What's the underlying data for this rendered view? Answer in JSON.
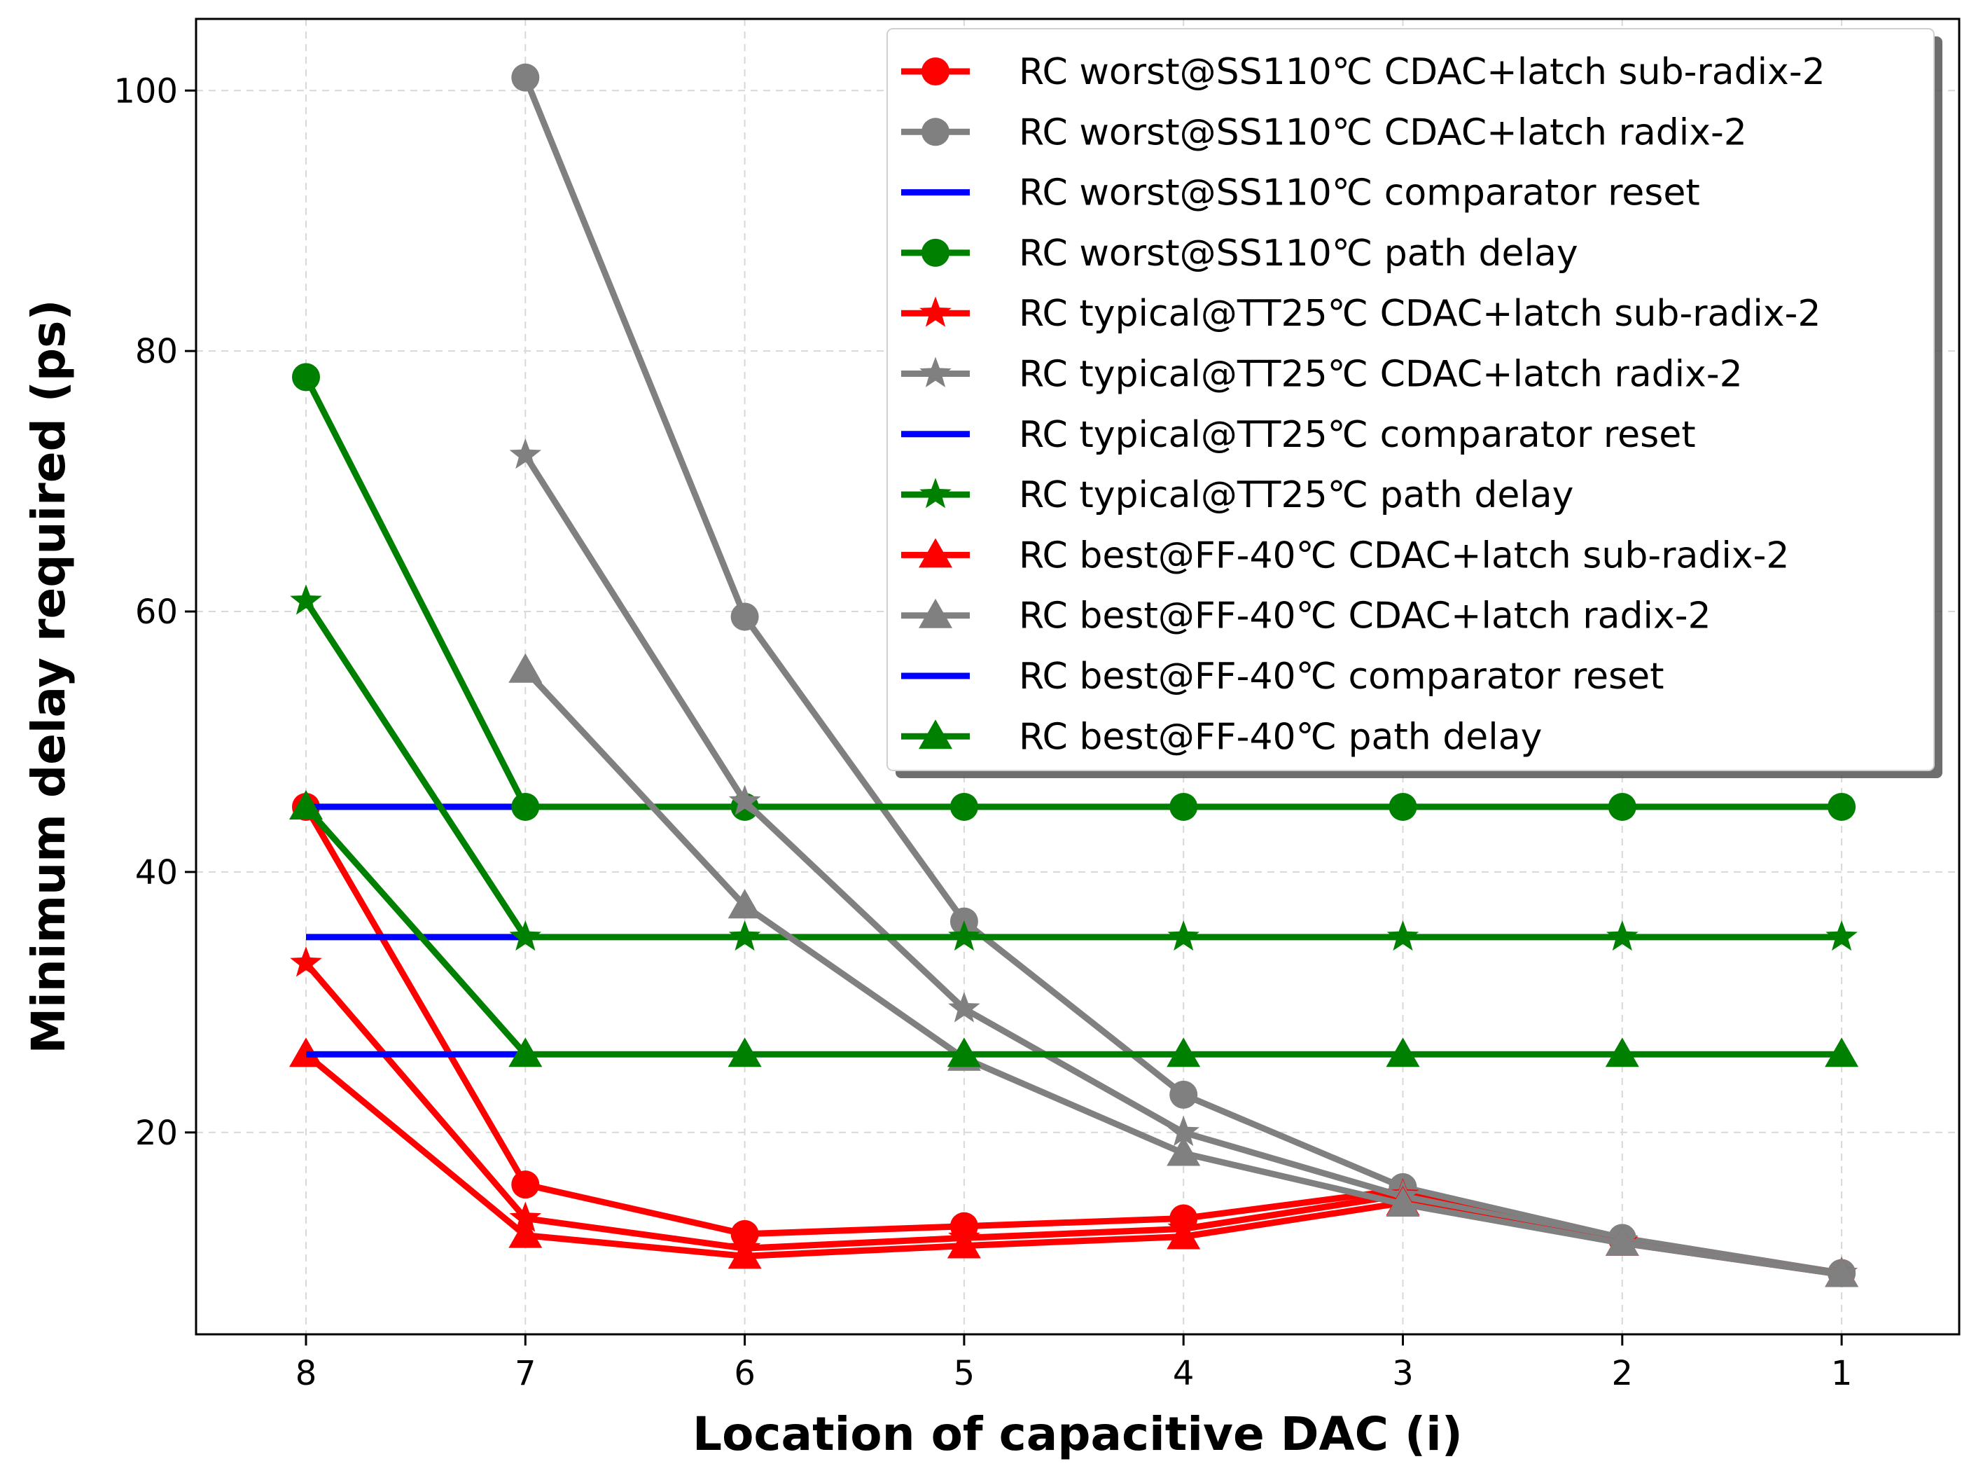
{
  "chart_data": {
    "type": "line",
    "xlabel": "Location of capacitive DAC (i)",
    "ylabel": "Minimum delay required (ps)",
    "x_categories": [
      "8",
      "7",
      "6",
      "5",
      "4",
      "3",
      "2",
      "1"
    ],
    "x_order": "descending",
    "ylim": [
      4.5,
      105.5
    ],
    "yticks": [
      20,
      40,
      60,
      80,
      100
    ],
    "grid": true,
    "legend_placement": "top-right",
    "colors": {
      "red": "#ff0000",
      "gray": "#808080",
      "blue": "#0000ff",
      "green": "#008000"
    },
    "series": [
      {
        "name": "RC worst@SS110℃ CDAC+latch sub-radix-2",
        "color": "#ff0000",
        "marker": "circle",
        "x": [
          8,
          7,
          6,
          5,
          4,
          3,
          2,
          1
        ],
        "values": [
          45,
          16,
          12.2,
          12.8,
          13.4,
          15.6,
          11.8,
          9.2
        ]
      },
      {
        "name": "RC worst@SS110℃ CDAC+latch radix-2",
        "color": "#808080",
        "marker": "circle",
        "x": [
          7,
          6,
          5,
          4,
          3,
          2,
          1
        ],
        "values": [
          101,
          59.6,
          36.2,
          22.9,
          15.8,
          11.9,
          9.2
        ]
      },
      {
        "name": "RC worst@SS110℃ comparator reset",
        "color": "#0000ff",
        "marker": "none",
        "x": [
          8,
          7
        ],
        "values": [
          45,
          45
        ]
      },
      {
        "name": "RC worst@SS110℃ path delay",
        "color": "#008000",
        "marker": "circle",
        "x": [
          8,
          7,
          6,
          5,
          4,
          3,
          2,
          1
        ],
        "values": [
          78,
          45,
          45,
          45,
          45,
          45,
          45,
          45
        ]
      },
      {
        "name": "RC typical@TT25℃ CDAC+latch sub-radix-2",
        "color": "#ff0000",
        "marker": "star",
        "x": [
          8,
          7,
          6,
          5,
          4,
          3,
          2,
          1
        ],
        "values": [
          33,
          13.4,
          11.1,
          11.9,
          12.6,
          15.2,
          11.6,
          9.2
        ]
      },
      {
        "name": "RC typical@TT25℃ CDAC+latch radix-2",
        "color": "#808080",
        "marker": "star",
        "x": [
          7,
          6,
          5,
          4,
          3,
          2,
          1
        ],
        "values": [
          72,
          45.4,
          29.5,
          20,
          15.1,
          11.7,
          9.2
        ]
      },
      {
        "name": "RC typical@TT25℃ comparator reset",
        "color": "#0000ff",
        "marker": "none",
        "x": [
          8,
          7
        ],
        "values": [
          35,
          35
        ]
      },
      {
        "name": "RC typical@TT25℃ path delay",
        "color": "#008000",
        "marker": "star",
        "x": [
          8,
          7,
          6,
          5,
          4,
          3,
          2,
          1
        ],
        "values": [
          60.8,
          35,
          35,
          35,
          35,
          35,
          35,
          35
        ]
      },
      {
        "name": "RC best@FF-40℃ CDAC+latch sub-radix-2",
        "color": "#ff0000",
        "marker": "triangle",
        "x": [
          8,
          7,
          6,
          5,
          4,
          3,
          2,
          1
        ],
        "values": [
          26,
          12.1,
          10.5,
          11.3,
          12,
          14.6,
          11.5,
          9.1
        ]
      },
      {
        "name": "RC best@FF-40℃ CDAC+latch radix-2",
        "color": "#808080",
        "marker": "triangle",
        "x": [
          7,
          6,
          5,
          4,
          3,
          2,
          1
        ],
        "values": [
          55.5,
          37.4,
          25.7,
          18.4,
          14.5,
          11.5,
          9.1
        ]
      },
      {
        "name": "RC best@FF-40℃ comparator reset",
        "color": "#0000ff",
        "marker": "none",
        "x": [
          8,
          7
        ],
        "values": [
          26,
          26
        ]
      },
      {
        "name": "RC best@FF-40℃ path delay",
        "color": "#008000",
        "marker": "triangle",
        "x": [
          8,
          7,
          6,
          5,
          4,
          3,
          2,
          1
        ],
        "values": [
          45,
          26,
          26,
          26,
          26,
          26,
          26,
          26
        ]
      }
    ]
  }
}
